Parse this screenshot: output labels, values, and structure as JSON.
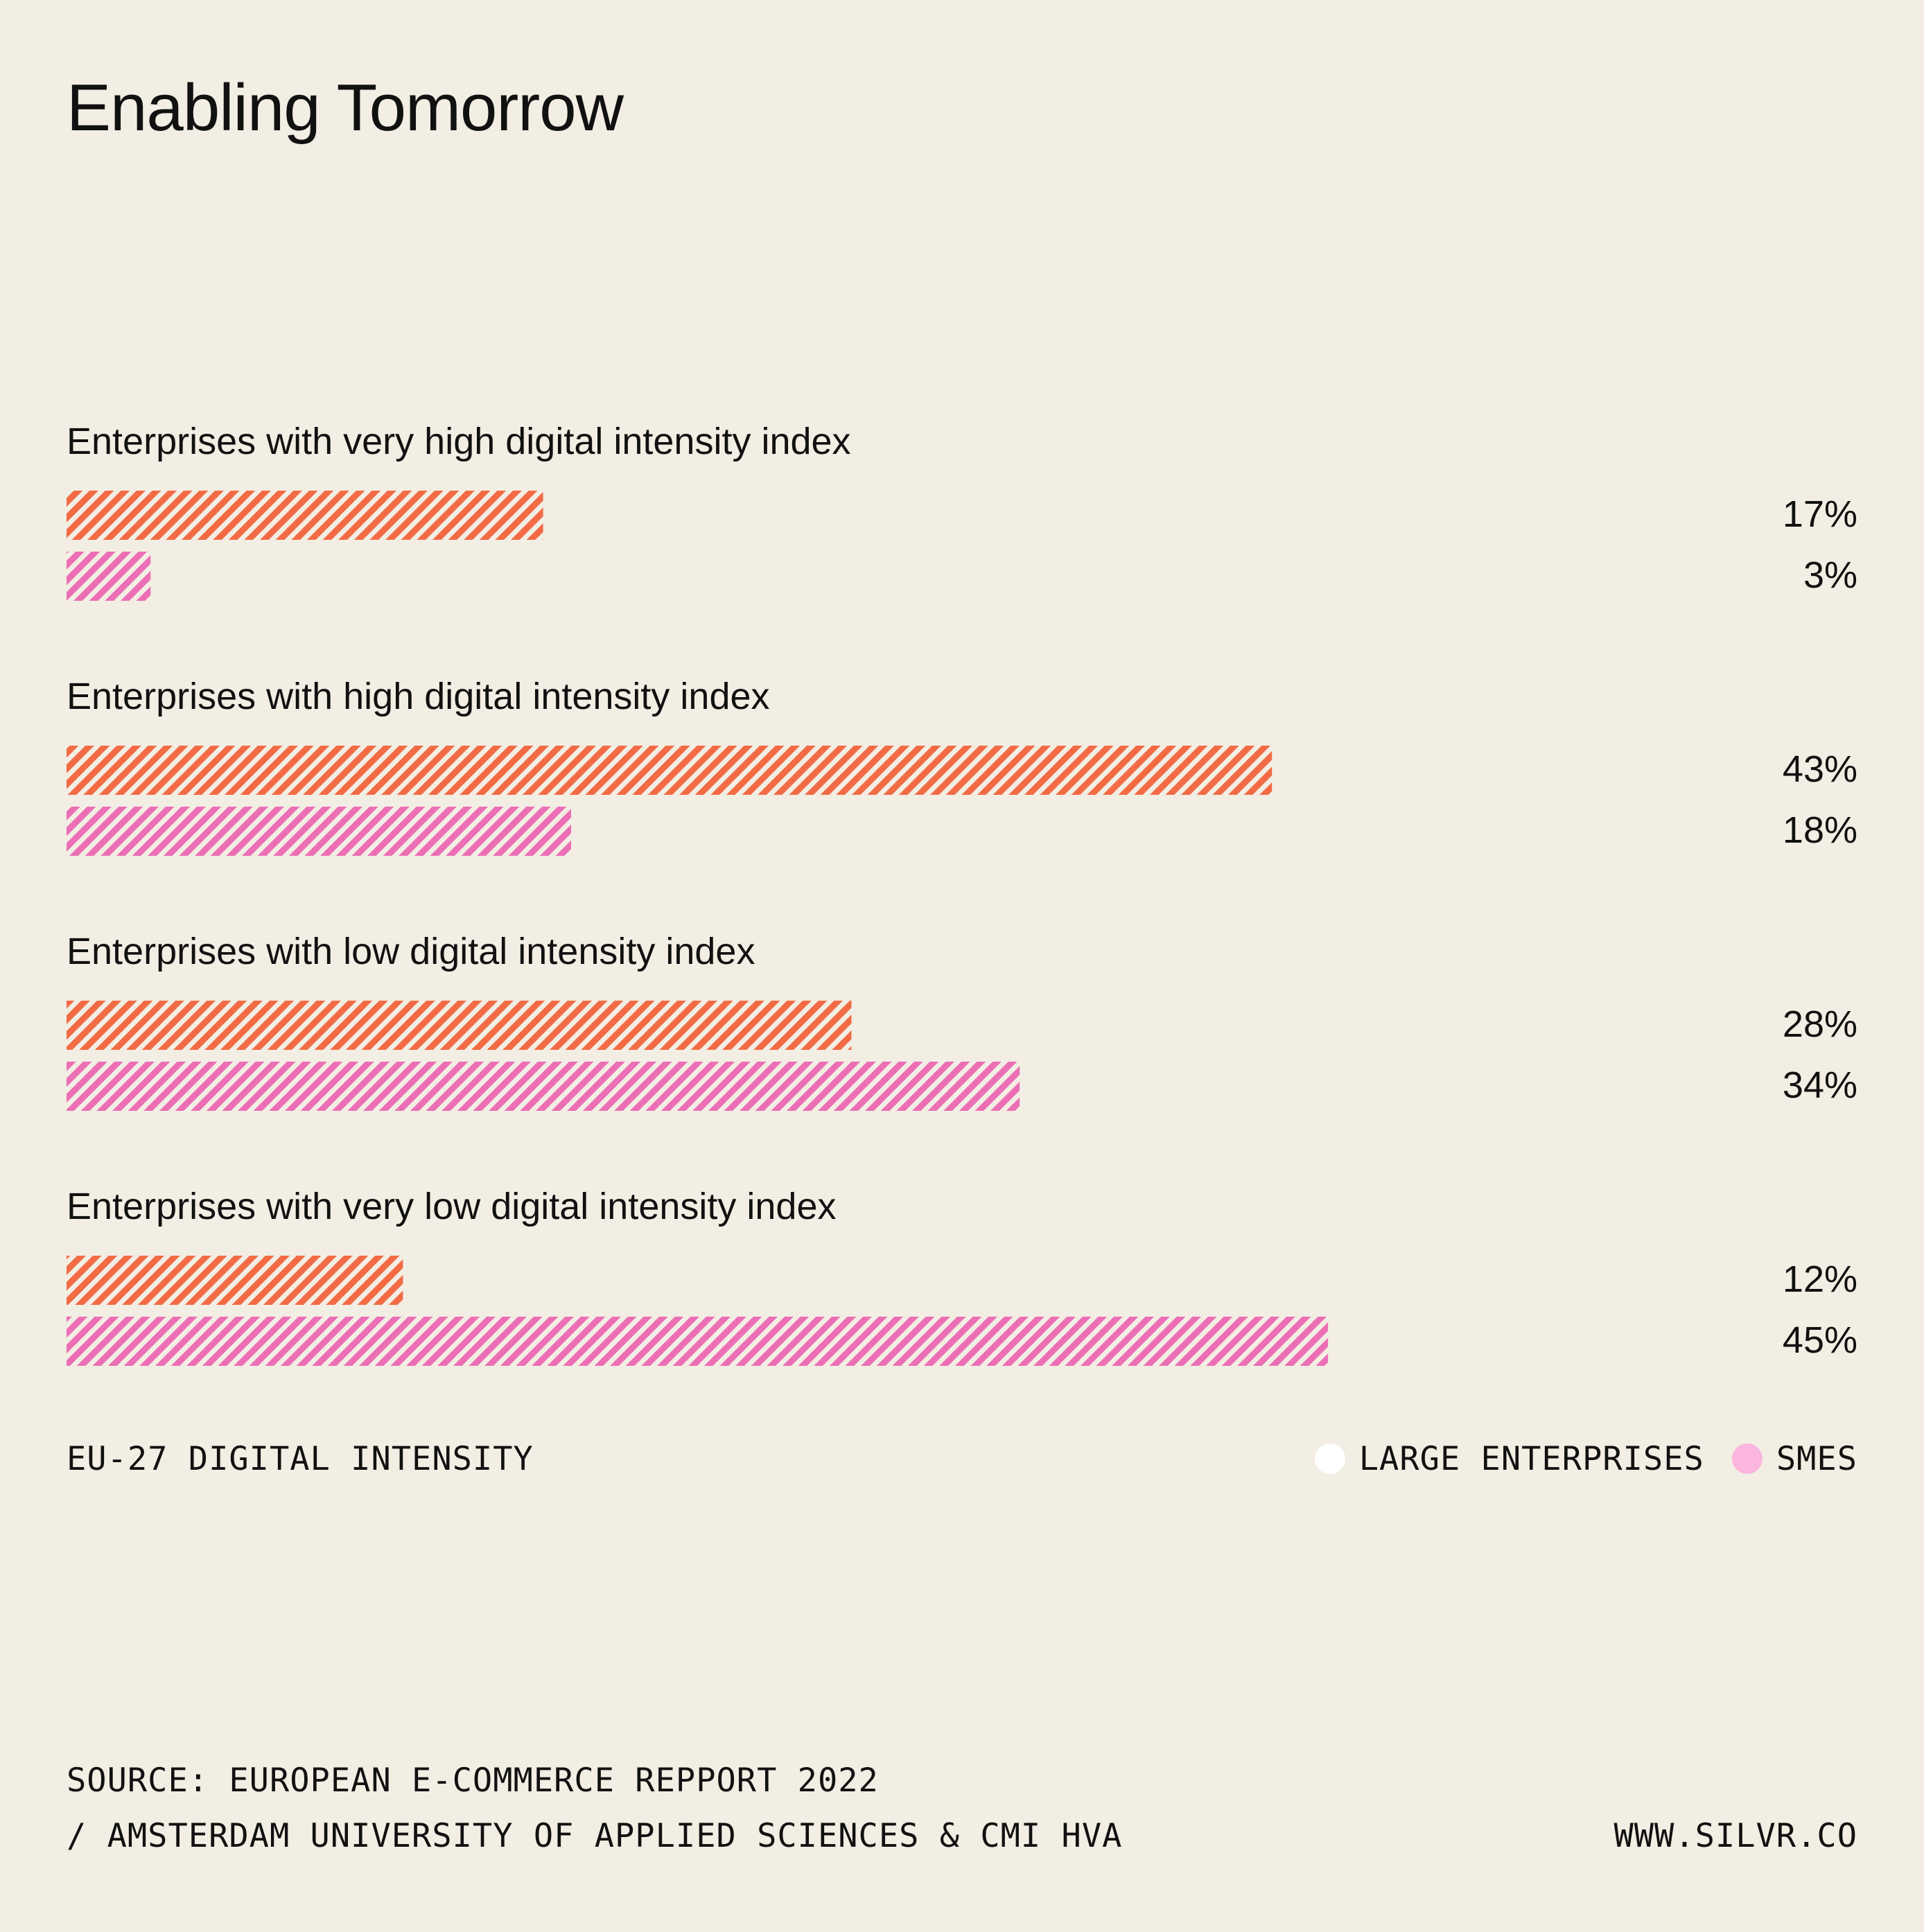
{
  "title": "Enabling Tomorrow",
  "chart_data": {
    "type": "bar",
    "orientation": "horizontal",
    "title": "Enabling Tomorrow",
    "subtitle": "EU-27 DIGITAL INTENSITY",
    "categories": [
      "Enterprises with very high digital intensity index",
      "Enterprises with high digital intensity index",
      "Enterprises with low digital intensity index",
      "Enterprises with very low digital intensity index"
    ],
    "series": [
      {
        "name": "LARGE ENTERPRISES",
        "values": [
          17,
          43,
          28,
          12
        ],
        "labels": [
          "17%",
          "43%",
          "28%",
          "12%"
        ],
        "color": "#f26b45",
        "legend_color": "#ffffff"
      },
      {
        "name": "SMES",
        "values": [
          3,
          18,
          34,
          45
        ],
        "labels": [
          "3%",
          "18%",
          "34%",
          "45%"
        ],
        "color": "#ec6fb5",
        "legend_color": "#fbb6de"
      }
    ],
    "xlim": [
      0,
      65
    ],
    "unit": "%",
    "pattern": "diagonal-hatch",
    "legend_position": "bottom-right",
    "grid": false
  },
  "footer": {
    "chart_caption": "EU-27 DIGITAL INTENSITY",
    "legend_large": "LARGE ENTERPRISES",
    "legend_smes": "SMES",
    "source_line1": "SOURCE: EUROPEAN E-COMMERCE REPPORT 2022",
    "source_line2": "/ AMSTERDAM UNIVERSITY OF APPLIED SCIENCES & CMI HVA",
    "website": "WWW.SILVR.CO"
  },
  "colors": {
    "background": "#f2eee4",
    "text": "#111111",
    "large_bar": "#f26b45",
    "sme_bar": "#ec6fb5"
  }
}
